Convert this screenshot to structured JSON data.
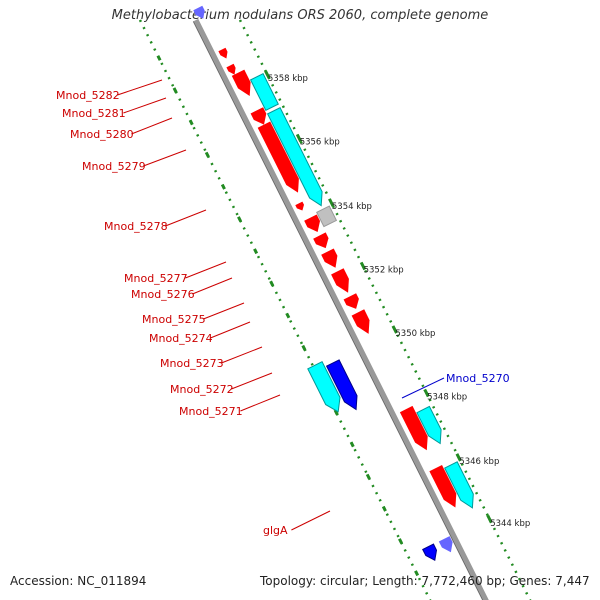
{
  "title": "Methylobacterium nodulans ORS 2060, complete genome",
  "accession": "Accession: NC_011894",
  "topology": "Topology: circular; Length: 7,772,460 bp; Genes: 7,447",
  "colors": {
    "backbone": "#999999",
    "forward_cds": "#ff0000",
    "reverse_cds": "#0000ff",
    "forward_cyan": "#00ffff",
    "reverse_cyan": "#00cccc",
    "gray_feature": "#c0c0c0",
    "tick": "#228b22",
    "gene_label_red": "#cc0000",
    "gene_label_blue": "#0000cc"
  },
  "scale_labels": [
    "5358 kbp",
    "5356 kbp",
    "5354 kbp",
    "5352 kbp",
    "5350 kbp",
    "5348 kbp",
    "5346 kbp",
    "5344 kbp"
  ],
  "gene_labels": [
    {
      "name": "Mnod_5282",
      "color": "red"
    },
    {
      "name": "Mnod_5281",
      "color": "red"
    },
    {
      "name": "Mnod_5280",
      "color": "red"
    },
    {
      "name": "Mnod_5279",
      "color": "red"
    },
    {
      "name": "Mnod_5278",
      "color": "red"
    },
    {
      "name": "Mnod_5277",
      "color": "red"
    },
    {
      "name": "Mnod_5276",
      "color": "red"
    },
    {
      "name": "Mnod_5275",
      "color": "red"
    },
    {
      "name": "Mnod_5274",
      "color": "red"
    },
    {
      "name": "Mnod_5273",
      "color": "red"
    },
    {
      "name": "Mnod_5272",
      "color": "red"
    },
    {
      "name": "Mnod_5271",
      "color": "red"
    },
    {
      "name": "glgA",
      "color": "red"
    },
    {
      "name": "Mnod_5270",
      "color": "blue"
    }
  ]
}
